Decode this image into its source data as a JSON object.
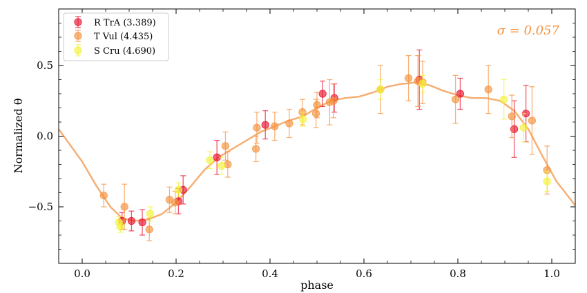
{
  "chart_data": {
    "type": "scatter",
    "xlabel": "phase",
    "ylabel": "Normalized θ",
    "xlim": [
      -0.05,
      1.05
    ],
    "ylim": [
      -0.9,
      0.9
    ],
    "xticks": [
      0.0,
      0.2,
      0.4,
      0.6,
      0.8,
      1.0
    ],
    "xtick_labels": [
      "0.0",
      "0.2",
      "0.4",
      "0.6",
      "0.8",
      "1.0"
    ],
    "yticks": [
      -0.5,
      0.0,
      0.5
    ],
    "ytick_labels": [
      "−0.5",
      "0.0",
      "0.5"
    ],
    "grid": false,
    "legend_position": "top-left",
    "annotation": {
      "text": "σ = 0.057",
      "color": "#f5923e",
      "position": "top-right"
    },
    "series": [
      {
        "name": "R TrA (3.389)",
        "color": "#e8132e",
        "points": [
          {
            "x": 0.085,
            "y": -0.6,
            "err": 0.06
          },
          {
            "x": 0.105,
            "y": -0.6,
            "err": 0.07
          },
          {
            "x": 0.128,
            "y": -0.61,
            "err": 0.09
          },
          {
            "x": 0.205,
            "y": -0.46,
            "err": 0.09
          },
          {
            "x": 0.215,
            "y": -0.38,
            "err": 0.1
          },
          {
            "x": 0.287,
            "y": -0.15,
            "err": 0.12
          },
          {
            "x": 0.39,
            "y": 0.08,
            "err": 0.1
          },
          {
            "x": 0.512,
            "y": 0.3,
            "err": 0.09
          },
          {
            "x": 0.537,
            "y": 0.27,
            "err": 0.1
          },
          {
            "x": 0.718,
            "y": 0.4,
            "err": 0.21
          },
          {
            "x": 0.805,
            "y": 0.3,
            "err": 0.11
          },
          {
            "x": 0.92,
            "y": 0.05,
            "err": 0.2
          },
          {
            "x": 0.945,
            "y": 0.16,
            "err": 0.2
          }
        ]
      },
      {
        "name": "T Vul (4.435)",
        "color": "#f5923e",
        "points": [
          {
            "x": 0.046,
            "y": -0.42,
            "err": 0.08
          },
          {
            "x": 0.09,
            "y": -0.5,
            "err": 0.16
          },
          {
            "x": 0.143,
            "y": -0.66,
            "err": 0.08
          },
          {
            "x": 0.186,
            "y": -0.45,
            "err": 0.09
          },
          {
            "x": 0.198,
            "y": -0.47,
            "err": 0.08
          },
          {
            "x": 0.305,
            "y": -0.07,
            "err": 0.1
          },
          {
            "x": 0.31,
            "y": -0.2,
            "err": 0.09
          },
          {
            "x": 0.37,
            "y": -0.09,
            "err": 0.09
          },
          {
            "x": 0.372,
            "y": 0.06,
            "err": 0.11
          },
          {
            "x": 0.41,
            "y": 0.07,
            "err": 0.1
          },
          {
            "x": 0.441,
            "y": 0.09,
            "err": 0.1
          },
          {
            "x": 0.469,
            "y": 0.17,
            "err": 0.09
          },
          {
            "x": 0.498,
            "y": 0.16,
            "err": 0.1
          },
          {
            "x": 0.5,
            "y": 0.22,
            "err": 0.09
          },
          {
            "x": 0.527,
            "y": 0.24,
            "err": 0.16
          },
          {
            "x": 0.535,
            "y": 0.25,
            "err": 0.12
          },
          {
            "x": 0.635,
            "y": 0.33,
            "err": 0.17
          },
          {
            "x": 0.695,
            "y": 0.41,
            "err": 0.16
          },
          {
            "x": 0.715,
            "y": 0.39,
            "err": 0.18
          },
          {
            "x": 0.725,
            "y": 0.38,
            "err": 0.15
          },
          {
            "x": 0.795,
            "y": 0.26,
            "err": 0.17
          },
          {
            "x": 0.865,
            "y": 0.33,
            "err": 0.17
          },
          {
            "x": 0.915,
            "y": 0.14,
            "err": 0.15
          },
          {
            "x": 0.958,
            "y": 0.11,
            "err": 0.24
          },
          {
            "x": 0.99,
            "y": -0.24,
            "err": 0.17
          }
        ]
      },
      {
        "name": "S Cru (4.690)",
        "color": "#f2f23a",
        "points": [
          {
            "x": 0.078,
            "y": -0.61,
            "err": 0.04
          },
          {
            "x": 0.082,
            "y": -0.64,
            "err": 0.04
          },
          {
            "x": 0.145,
            "y": -0.55,
            "err": 0.05
          },
          {
            "x": 0.205,
            "y": -0.38,
            "err": 0.05
          },
          {
            "x": 0.272,
            "y": -0.17,
            "err": 0.06
          },
          {
            "x": 0.297,
            "y": -0.21,
            "err": 0.06
          },
          {
            "x": 0.47,
            "y": 0.12,
            "err": 0.05
          },
          {
            "x": 0.635,
            "y": 0.33,
            "err": 0.07
          },
          {
            "x": 0.725,
            "y": 0.37,
            "err": 0.06
          },
          {
            "x": 0.898,
            "y": 0.26,
            "err": 0.14
          },
          {
            "x": 0.94,
            "y": 0.06,
            "err": 0.1
          },
          {
            "x": 0.99,
            "y": -0.32,
            "err": 0.07
          }
        ]
      }
    ],
    "fit_curve": {
      "color": "#f5a05a",
      "points": [
        [
          -0.05,
          0.05
        ],
        [
          0.0,
          -0.18
        ],
        [
          0.03,
          -0.35
        ],
        [
          0.06,
          -0.5
        ],
        [
          0.085,
          -0.58
        ],
        [
          0.11,
          -0.6
        ],
        [
          0.14,
          -0.59
        ],
        [
          0.17,
          -0.55
        ],
        [
          0.2,
          -0.47
        ],
        [
          0.23,
          -0.36
        ],
        [
          0.26,
          -0.24
        ],
        [
          0.29,
          -0.15
        ],
        [
          0.32,
          -0.09
        ],
        [
          0.35,
          -0.03
        ],
        [
          0.38,
          0.03
        ],
        [
          0.41,
          0.07
        ],
        [
          0.44,
          0.11
        ],
        [
          0.47,
          0.14
        ],
        [
          0.5,
          0.2
        ],
        [
          0.53,
          0.25
        ],
        [
          0.56,
          0.27
        ],
        [
          0.59,
          0.28
        ],
        [
          0.62,
          0.31
        ],
        [
          0.65,
          0.35
        ],
        [
          0.68,
          0.37
        ],
        [
          0.71,
          0.38
        ],
        [
          0.74,
          0.36
        ],
        [
          0.77,
          0.32
        ],
        [
          0.8,
          0.29
        ],
        [
          0.83,
          0.27
        ],
        [
          0.86,
          0.27
        ],
        [
          0.89,
          0.25
        ],
        [
          0.92,
          0.18
        ],
        [
          0.95,
          0.05
        ],
        [
          0.98,
          -0.14
        ],
        [
          1.01,
          -0.32
        ],
        [
          1.05,
          -0.49
        ]
      ]
    }
  }
}
